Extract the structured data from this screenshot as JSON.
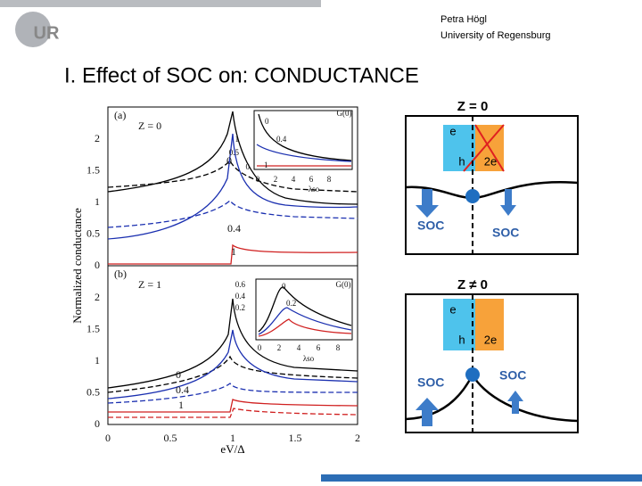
{
  "header": {
    "logo": "UR",
    "author": "Petra Högl",
    "affiliation": "University of Regensburg"
  },
  "title": "I. Effect of SOC on: CONDUCTANCE",
  "plot": {
    "y_label": "Normalized conductance",
    "x_label": "eV/Δ",
    "x_ticks": [
      "0",
      "0.5",
      "1",
      "1.5",
      "2"
    ],
    "panels": [
      {
        "tag": "(a)",
        "z": "Z = 0",
        "y_ticks": [
          "0",
          "0.5",
          "1",
          "1.5",
          "2"
        ],
        "curve_labels": [
          "0",
          "0.4",
          "1"
        ],
        "inset": {
          "title": "G(0)",
          "y_ticks": [
            "1",
            "0.5",
            "0"
          ],
          "x_ticks": [
            "0",
            "2",
            "4",
            "6",
            "8"
          ],
          "x_label": "λso",
          "curve_labels": [
            "0",
            "0.4",
            "1"
          ]
        }
      },
      {
        "tag": "(b)",
        "z": "Z = 1",
        "y_ticks": [
          "0",
          "0.5",
          "1",
          "1.5",
          "2"
        ],
        "curve_labels": [
          "0",
          "0.4",
          "1"
        ],
        "inset": {
          "title": "G(0)",
          "y_ticks": [
            "0.6",
            "0.4",
            "0.2"
          ],
          "x_ticks": [
            "0",
            "2",
            "4",
            "6",
            "8"
          ],
          "x_label": "λso",
          "curve_labels": [
            "0",
            "0.2"
          ]
        }
      }
    ]
  },
  "diagrams": [
    {
      "title": "Z = 0",
      "electron": "e",
      "hole": "h",
      "pair": "2e",
      "soc_left": "SOC",
      "soc_right": "SOC"
    },
    {
      "title": "Z ≠ 0",
      "electron": "e",
      "hole": "h",
      "pair": "2e",
      "soc_left": "SOC",
      "soc_right": "SOC"
    }
  ]
}
